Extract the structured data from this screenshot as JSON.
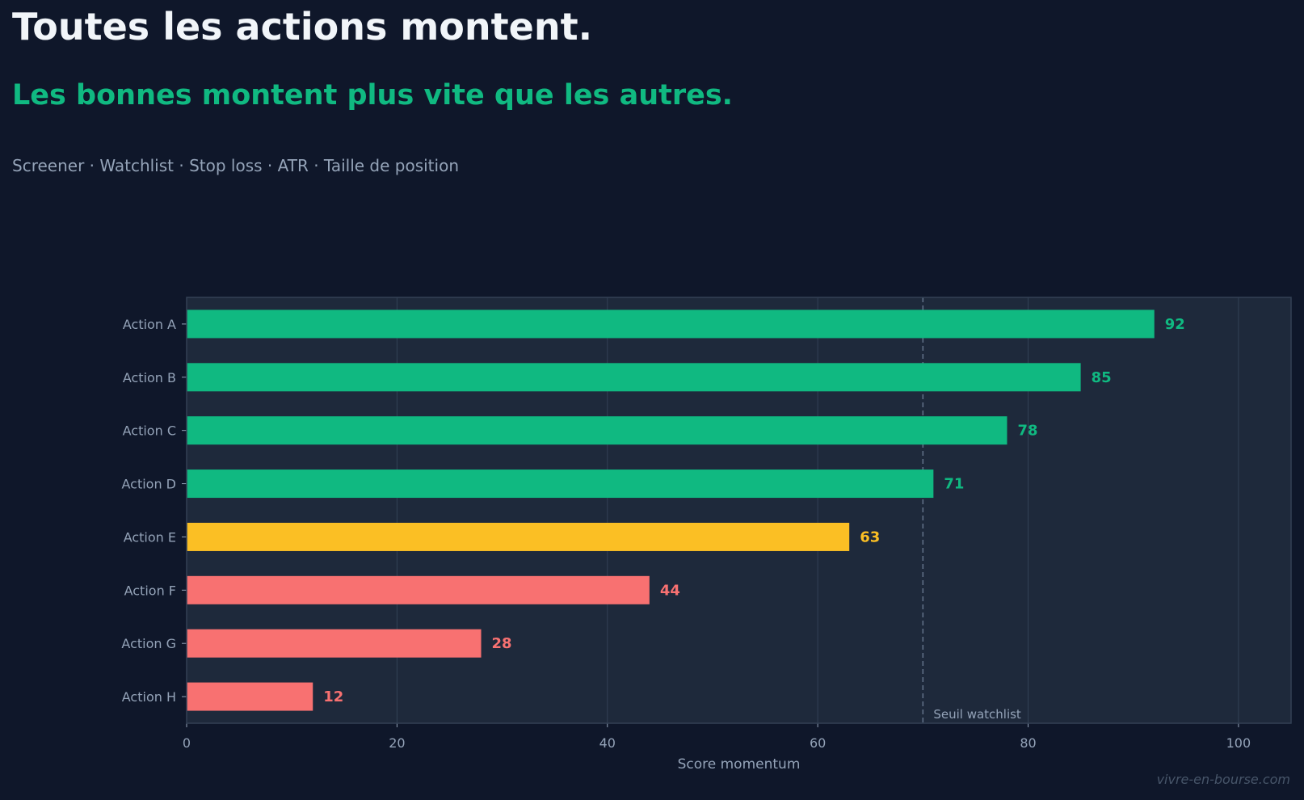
{
  "header": {
    "title": "Toutes les actions montent.",
    "subtitle": "Les bonnes montent plus vite que les autres.",
    "tagline": "Screener · Watchlist · Stop loss · ATR · Taille de position"
  },
  "colors": {
    "background": "#0f172a",
    "plot_background": "#1e293b",
    "strong": "#10b981",
    "neutral": "#fbbf24",
    "weak": "#f87171",
    "grid": "#334155",
    "text_muted": "#94a3b8"
  },
  "chart_data": {
    "type": "bar",
    "orientation": "horizontal",
    "categories": [
      "Action A",
      "Action B",
      "Action C",
      "Action D",
      "Action E",
      "Action F",
      "Action G",
      "Action H"
    ],
    "values": [
      92,
      85,
      78,
      71,
      63,
      44,
      28,
      12
    ],
    "bar_colors": [
      "#10b981",
      "#10b981",
      "#10b981",
      "#10b981",
      "#fbbf24",
      "#f87171",
      "#f87171",
      "#f87171"
    ],
    "xlabel": "Score momentum",
    "ylabel": "",
    "xlim": [
      0,
      105
    ],
    "xticks": [
      0,
      20,
      40,
      60,
      80,
      100
    ],
    "grid": "vertical",
    "threshold": {
      "value": 70,
      "label": "Seuil watchlist"
    }
  },
  "footer": {
    "watermark": "vivre-en-bourse.com"
  }
}
